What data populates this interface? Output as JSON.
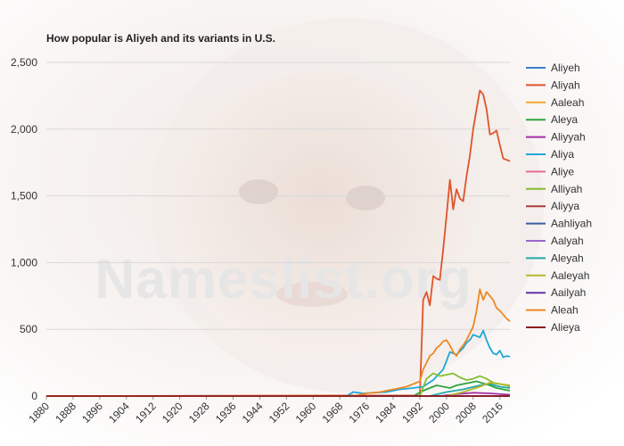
{
  "chart_data": {
    "type": "line",
    "title": "How popular is Aliyeh and its variants in U.S.",
    "xlabel": "",
    "ylabel": "",
    "xlim": [
      1880,
      2019
    ],
    "ylim": [
      0,
      2500
    ],
    "yticks": [
      0,
      500,
      1000,
      1500,
      2000,
      2500
    ],
    "ytick_labels": [
      "0",
      "500",
      "1,000",
      "1,500",
      "2,000",
      "2,500"
    ],
    "xticks": [
      1880,
      1888,
      1896,
      1904,
      1912,
      1920,
      1928,
      1936,
      1944,
      1952,
      1960,
      1968,
      1976,
      1984,
      1992,
      2000,
      2008,
      2016
    ],
    "grid": "horizontal",
    "legend_position": "right",
    "watermark": "Nameslist.org",
    "series": [
      {
        "name": "Aliyeh",
        "color": "#3f7fcc",
        "x": [
          1880,
          2019
        ],
        "y": [
          0,
          0
        ]
      },
      {
        "name": "Aliyah",
        "color": "#e0532b",
        "x": [
          1880,
          1992,
          1993,
          1994,
          1995,
          1996,
          1997,
          1998,
          1999,
          2000,
          2001,
          2002,
          2003,
          2004,
          2005,
          2006,
          2007,
          2008,
          2009,
          2010,
          2011,
          2012,
          2013,
          2014,
          2015,
          2016,
          2017,
          2018,
          2019
        ],
        "y": [
          0,
          5,
          720,
          780,
          680,
          900,
          880,
          870,
          1100,
          1350,
          1620,
          1400,
          1550,
          1480,
          1460,
          1650,
          1800,
          2000,
          2150,
          2290,
          2260,
          2150,
          1960,
          1970,
          1990,
          1880,
          1780,
          1770,
          1760
        ]
      },
      {
        "name": "Aaleah",
        "color": "#f0a531",
        "x": [
          1880,
          2019
        ],
        "y": [
          0,
          0
        ]
      },
      {
        "name": "Aleya",
        "color": "#2ea43e",
        "x": [
          1880,
          1990,
          1993,
          1995,
          1997,
          1999,
          2001,
          2003,
          2005,
          2007,
          2009,
          2011,
          2013,
          2015,
          2017,
          2019
        ],
        "y": [
          0,
          0,
          40,
          60,
          80,
          70,
          60,
          80,
          90,
          100,
          110,
          95,
          80,
          60,
          50,
          40
        ]
      },
      {
        "name": "Aliyyah",
        "color": "#a52fa8",
        "x": [
          1880,
          1998,
          2003,
          2008,
          2013,
          2019
        ],
        "y": [
          0,
          0,
          15,
          25,
          20,
          10
        ]
      },
      {
        "name": "Aliya",
        "color": "#1ea7d8",
        "x": [
          1880,
          1970,
          1972,
          1975,
          1978,
          1982,
          1986,
          1990,
          1993,
          1996,
          1999,
          2001,
          2003,
          2005,
          2006,
          2007,
          2008,
          2009,
          2010,
          2011,
          2012,
          2013,
          2014,
          2015,
          2016,
          2017,
          2018,
          2019
        ],
        "y": [
          0,
          0,
          30,
          20,
          25,
          30,
          50,
          60,
          70,
          120,
          200,
          330,
          310,
          360,
          400,
          420,
          460,
          450,
          440,
          490,
          420,
          360,
          320,
          310,
          340,
          290,
          300,
          295
        ]
      },
      {
        "name": "Aliye",
        "color": "#e46a96",
        "x": [
          1880,
          2019
        ],
        "y": [
          0,
          0
        ]
      },
      {
        "name": "Alliyah",
        "color": "#83be2e",
        "x": [
          1880,
          1992,
          1994,
          1996,
          1998,
          2000,
          2002,
          2004,
          2006,
          2008,
          2010,
          2012,
          2014,
          2016,
          2018,
          2019
        ],
        "y": [
          0,
          0,
          130,
          170,
          150,
          160,
          170,
          140,
          120,
          130,
          150,
          130,
          100,
          90,
          80,
          70
        ]
      },
      {
        "name": "Aliyya",
        "color": "#b03a3a",
        "x": [
          1880,
          2019
        ],
        "y": [
          0,
          0
        ]
      },
      {
        "name": "Aahliyah",
        "color": "#3a5da0",
        "x": [
          1880,
          2019
        ],
        "y": [
          0,
          0
        ]
      },
      {
        "name": "Aalyah",
        "color": "#9966cc",
        "x": [
          1880,
          2019
        ],
        "y": [
          0,
          0
        ]
      },
      {
        "name": "Aleyah",
        "color": "#22aaaa",
        "x": [
          1880,
          1995,
          2000,
          2005,
          2010,
          2013,
          2016,
          2019
        ],
        "y": [
          0,
          0,
          30,
          50,
          80,
          90,
          70,
          60
        ]
      },
      {
        "name": "Aaleyah",
        "color": "#b5b72a",
        "x": [
          1880,
          2000,
          2005,
          2010,
          2013,
          2016,
          2019
        ],
        "y": [
          0,
          0,
          30,
          70,
          100,
          90,
          80
        ]
      },
      {
        "name": "Aailyah",
        "color": "#6633aa",
        "x": [
          1880,
          2019
        ],
        "y": [
          0,
          0
        ]
      },
      {
        "name": "Aleah",
        "color": "#ee8822",
        "x": [
          1880,
          1972,
          1976,
          1980,
          1984,
          1988,
          1990,
          1992,
          1993,
          1994,
          1995,
          1996,
          1997,
          1998,
          1999,
          2000,
          2001,
          2002,
          2003,
          2004,
          2005,
          2006,
          2007,
          2008,
          2009,
          2010,
          2011,
          2012,
          2013,
          2014,
          2015,
          2016,
          2017,
          2018,
          2019
        ],
        "y": [
          0,
          0,
          20,
          30,
          50,
          70,
          90,
          110,
          200,
          250,
          300,
          320,
          360,
          380,
          410,
          420,
          380,
          330,
          300,
          350,
          380,
          420,
          470,
          520,
          640,
          800,
          720,
          780,
          750,
          720,
          660,
          640,
          610,
          580,
          560
        ]
      },
      {
        "name": "Alieya",
        "color": "#8b1c1c",
        "x": [
          1880,
          2019
        ],
        "y": [
          0,
          0
        ]
      }
    ]
  }
}
